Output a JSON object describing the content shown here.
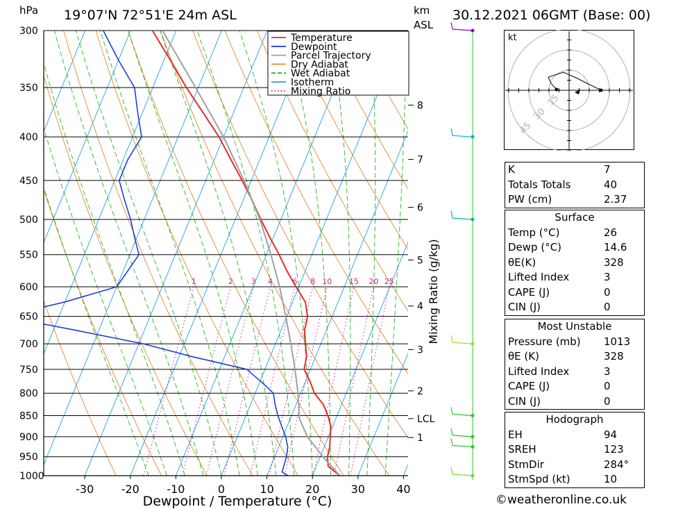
{
  "header": {
    "pressure_unit": "hPa",
    "location": "19°07'N  72°51'E  24m  ASL",
    "height_unit": "km",
    "height_ref": "ASL",
    "datetime": "30.12.2021  06GMT  (Base: 00)"
  },
  "legend": {
    "items": [
      {
        "label": "Temperature",
        "color": "#e8282a",
        "style": "solid"
      },
      {
        "label": "Dewpoint",
        "color": "#1e3cdc",
        "style": "solid"
      },
      {
        "label": "Parcel Trajectory",
        "color": "#a0a0a0",
        "style": "solid"
      },
      {
        "label": "Dry Adiabat",
        "color": "#e08a2c",
        "style": "solid"
      },
      {
        "label": "Wet Adiabat",
        "color": "#22b422",
        "style": "dashed"
      },
      {
        "label": "Isotherm",
        "color": "#1ea0e6",
        "style": "solid"
      },
      {
        "label": "Mixing Ratio",
        "color": "#c81e96",
        "style": "dotted"
      }
    ]
  },
  "chart_data": {
    "type": "line",
    "title": "",
    "xlabel": "Dewpoint / Temperature (°C)",
    "ylabel": "hPa",
    "ylabel_right": "Mixing Ratio (g/kg)",
    "x_ticks": [
      -30,
      -20,
      -10,
      0,
      10,
      20,
      30,
      40
    ],
    "y_ticks": [
      300,
      350,
      400,
      450,
      500,
      550,
      600,
      650,
      700,
      750,
      800,
      850,
      900,
      950,
      1000
    ],
    "height_ticks": [
      {
        "label": "8",
        "p": 367
      },
      {
        "label": "7",
        "p": 425
      },
      {
        "label": "6",
        "p": 484
      },
      {
        "label": "5",
        "p": 558
      },
      {
        "label": "4",
        "p": 632
      },
      {
        "label": "3",
        "p": 711
      },
      {
        "label": "2",
        "p": 795
      },
      {
        "label": "LCL",
        "p": 857
      },
      {
        "label": "1",
        "p": 902
      }
    ],
    "mixing_ratio_labels": [
      "1",
      "2",
      "3",
      "4",
      "6",
      "8",
      "10",
      "15",
      "20",
      "25"
    ],
    "series": [
      {
        "name": "Temperature",
        "color": "#e8282a",
        "points": [
          [
            1000,
            26.0
          ],
          [
            975,
            22.6
          ],
          [
            950,
            21.6
          ],
          [
            925,
            21.2
          ],
          [
            900,
            20.4
          ],
          [
            875,
            19.6
          ],
          [
            850,
            18.0
          ],
          [
            825,
            16.0
          ],
          [
            800,
            13.0
          ],
          [
            775,
            11.0
          ],
          [
            750,
            8.6
          ],
          [
            725,
            8.0
          ],
          [
            700,
            6.6
          ],
          [
            675,
            5.2
          ],
          [
            650,
            4.6
          ],
          [
            625,
            2.8
          ],
          [
            600,
            -0.6
          ],
          [
            575,
            -4.0
          ],
          [
            550,
            -7.2
          ],
          [
            525,
            -10.8
          ],
          [
            500,
            -14.4
          ],
          [
            475,
            -18.0
          ],
          [
            450,
            -22.0
          ],
          [
            425,
            -26.4
          ],
          [
            400,
            -31.0
          ],
          [
            375,
            -36.6
          ],
          [
            350,
            -42.6
          ],
          [
            325,
            -48.6
          ],
          [
            300,
            -55.2
          ]
        ]
      },
      {
        "name": "Dewpoint",
        "color": "#1e3cdc",
        "points": [
          [
            1000,
            14.6
          ],
          [
            990,
            13.0
          ],
          [
            950,
            12.6
          ],
          [
            925,
            12.0
          ],
          [
            900,
            10.6
          ],
          [
            875,
            8.8
          ],
          [
            850,
            7.0
          ],
          [
            825,
            5.4
          ],
          [
            800,
            4.0
          ],
          [
            775,
            0.2
          ],
          [
            750,
            -4.0
          ],
          [
            725,
            -17.0
          ],
          [
            700,
            -29.0
          ],
          [
            675,
            -45.0
          ],
          [
            650,
            -62.0
          ],
          [
            625,
            -50.0
          ],
          [
            600,
            -40.0
          ],
          [
            575,
            -39.0
          ],
          [
            550,
            -38.0
          ],
          [
            525,
            -40.5
          ],
          [
            500,
            -43.0
          ],
          [
            475,
            -46.0
          ],
          [
            450,
            -49.0
          ],
          [
            425,
            -49.0
          ],
          [
            400,
            -48.0
          ],
          [
            375,
            -51.0
          ],
          [
            350,
            -54.0
          ],
          [
            325,
            -60.0
          ],
          [
            300,
            -66.0
          ]
        ]
      },
      {
        "name": "Parcel Trajectory",
        "color": "#a0a0a0",
        "points": [
          [
            1000,
            26.0
          ],
          [
            950,
            20.6
          ],
          [
            900,
            15.4
          ],
          [
            857,
            12.0
          ],
          [
            800,
            9.4
          ],
          [
            750,
            6.6
          ],
          [
            700,
            3.4
          ],
          [
            650,
            -0.2
          ],
          [
            600,
            -4.2
          ],
          [
            550,
            -9.0
          ],
          [
            500,
            -14.6
          ],
          [
            450,
            -21.6
          ],
          [
            400,
            -30.0
          ],
          [
            350,
            -40.6
          ],
          [
            300,
            -53.0
          ]
        ]
      }
    ],
    "xlim": [
      -40,
      40
    ],
    "ylim": [
      1000,
      300
    ],
    "skew_deg_per_decade": 76.6,
    "wind_barbs": [
      {
        "p": 300,
        "color": "#8a00c8"
      },
      {
        "p": 400,
        "color": "#00b4c8"
      },
      {
        "p": 500,
        "color": "#00b4a0"
      },
      {
        "p": 700,
        "color": "#a0dc28"
      },
      {
        "p": 850,
        "color": "#28c828"
      },
      {
        "p": 900,
        "color": "#28c828"
      },
      {
        "p": 925,
        "color": "#28c828"
      },
      {
        "p": 1000,
        "color": "#78dc28"
      }
    ]
  },
  "hodograph": {
    "unit": "kt",
    "ring_labels": [
      "15",
      "30",
      "45"
    ]
  },
  "indices": {
    "top": [
      {
        "label": "K",
        "value": "7"
      },
      {
        "label": "Totals Totals",
        "value": "40"
      },
      {
        "label": "PW (cm)",
        "value": "2.37"
      }
    ],
    "surface": {
      "title": "Surface",
      "rows": [
        {
          "label": "Temp (°C)",
          "value": "26"
        },
        {
          "label": "Dewp (°C)",
          "value": "14.6"
        },
        {
          "label": "θE(K)",
          "value": "328"
        },
        {
          "label": "Lifted Index",
          "value": "3"
        },
        {
          "label": "CAPE (J)",
          "value": "0"
        },
        {
          "label": "CIN (J)",
          "value": "0"
        }
      ]
    },
    "most_unstable": {
      "title": "Most Unstable",
      "rows": [
        {
          "label": "Pressure (mb)",
          "value": "1013"
        },
        {
          "label": "θE (K)",
          "value": "328"
        },
        {
          "label": "Lifted Index",
          "value": "3"
        },
        {
          "label": "CAPE (J)",
          "value": "0"
        },
        {
          "label": "CIN (J)",
          "value": "0"
        }
      ]
    },
    "hodograph": {
      "title": "Hodograph",
      "rows": [
        {
          "label": "EH",
          "value": "94"
        },
        {
          "label": "SREH",
          "value": "123"
        },
        {
          "label": "StmDir",
          "value": "284°"
        },
        {
          "label": "StmSpd (kt)",
          "value": "10"
        }
      ]
    }
  },
  "footer": {
    "copyright": "©weatheronline.co.uk"
  }
}
